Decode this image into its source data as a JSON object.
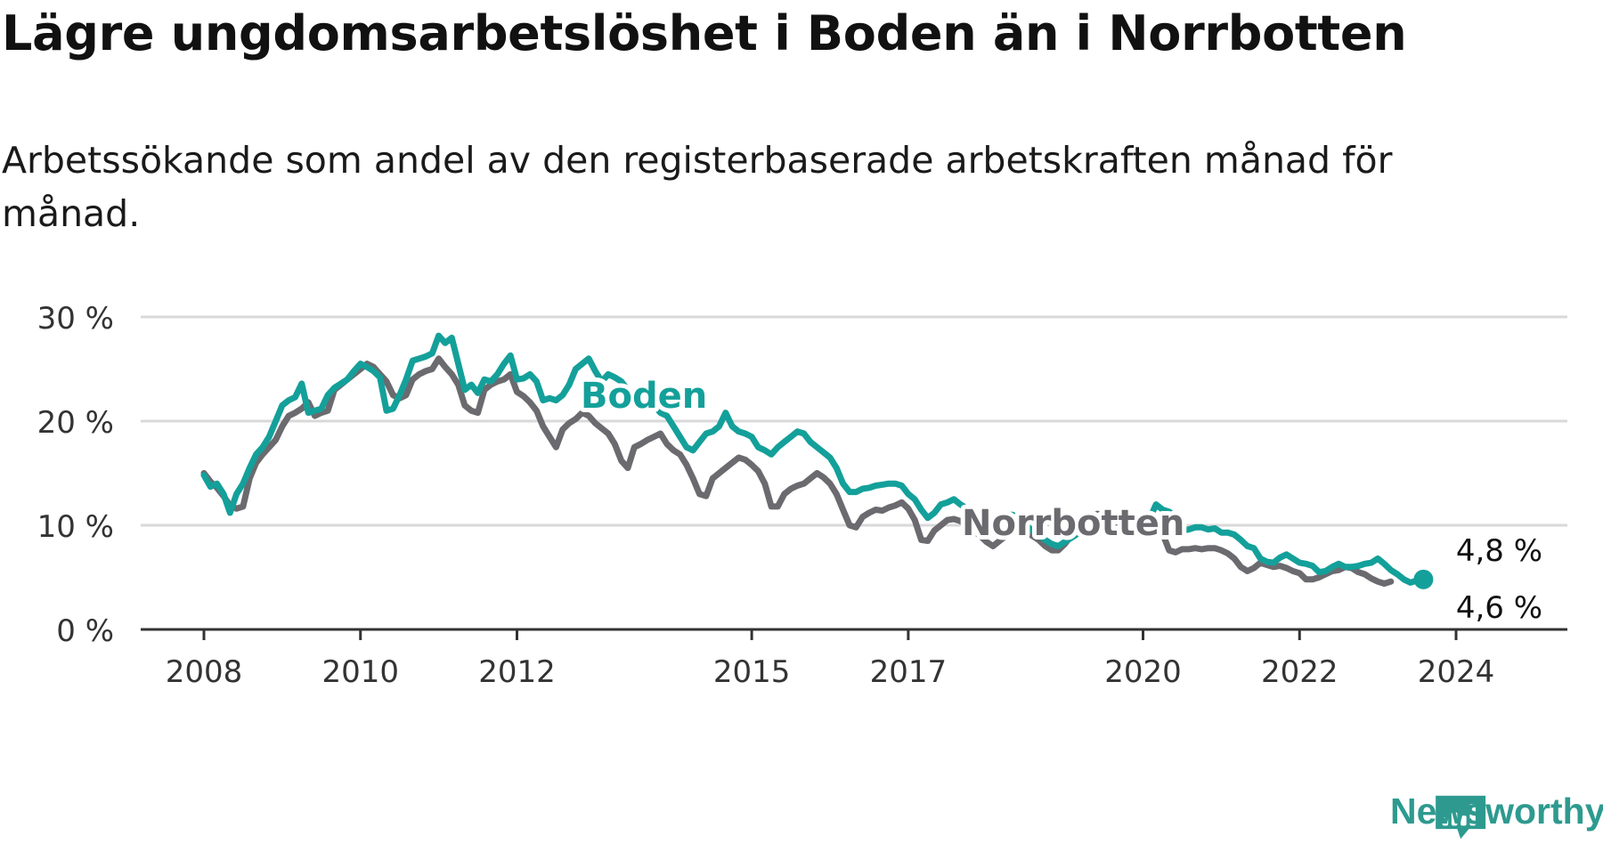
{
  "title": "Lägre ungdomsarbetslöshet i Boden än i Norrbotten",
  "subtitle": "Arbetssökande som andel av den registerbaserade arbetskraften månad för månad.",
  "brand": {
    "name": "Newsworthy",
    "color": "#2e9a8f",
    "icon": "bar-chart-speech-icon"
  },
  "colors": {
    "boden": "#14a09a",
    "norrbotten": "#6b6a6f",
    "grid": "#d9d9d9",
    "axis": "#333333"
  },
  "chart_data": {
    "type": "line",
    "title": "Lägre ungdomsarbetslöshet i Boden än i Norrbotten",
    "subtitle": "Arbetssökande som andel av den registerbaserade arbetskraften månad för månad.",
    "xlabel": "",
    "ylabel": "",
    "x_start": "2008-01",
    "frequency": "monthly",
    "xlim": [
      "2008-01",
      "2025-12"
    ],
    "ylim": [
      0,
      30
    ],
    "y_ticks": [
      {
        "value": 0,
        "label": "0 %"
      },
      {
        "value": 10,
        "label": "10 %"
      },
      {
        "value": 20,
        "label": "20 %"
      },
      {
        "value": 30,
        "label": "30 %"
      }
    ],
    "x_ticks": [
      {
        "value": "2008-01",
        "label": "2008"
      },
      {
        "value": "2010-01",
        "label": "2010"
      },
      {
        "value": "2012-01",
        "label": "2012"
      },
      {
        "value": "2015-01",
        "label": "2015"
      },
      {
        "value": "2017-01",
        "label": "2017"
      },
      {
        "value": "2020-01",
        "label": "2020"
      },
      {
        "value": "2022-01",
        "label": "2022"
      },
      {
        "value": "2024-01",
        "label": "2024"
      }
    ],
    "grid": true,
    "series": [
      {
        "name": "Norrbotten",
        "color": "#6b6a6f",
        "values": [
          15.0,
          14.2,
          13.6,
          12.8,
          11.9,
          11.6,
          11.8,
          14.5,
          16.0,
          16.8,
          17.5,
          18.2,
          19.5,
          20.5,
          20.8,
          21.2,
          21.8,
          20.5,
          20.8,
          21.0,
          23.0,
          23.5,
          24.0,
          24.5,
          25.0,
          25.5,
          25.2,
          24.5,
          23.8,
          22.5,
          22.2,
          22.5,
          24.0,
          24.5,
          24.8,
          25.0,
          26.0,
          25.2,
          24.5,
          23.5,
          21.5,
          21.0,
          20.8,
          23.0,
          23.5,
          23.8,
          24.0,
          24.5,
          22.8,
          22.4,
          21.8,
          21.0,
          19.5,
          18.5,
          17.5,
          19.2,
          19.8,
          20.2,
          20.8,
          20.5,
          19.8,
          19.3,
          18.8,
          17.8,
          16.2,
          15.5,
          17.5,
          17.8,
          18.2,
          18.5,
          18.8,
          17.8,
          17.2,
          16.8,
          15.8,
          14.5,
          13.0,
          12.8,
          14.5,
          15.0,
          15.5,
          16.0,
          16.5,
          16.3,
          15.8,
          15.2,
          14.0,
          11.8,
          11.8,
          13.0,
          13.5,
          13.8,
          14.0,
          14.5,
          15.0,
          14.6,
          14.0,
          13.0,
          11.5,
          10.0,
          9.8,
          10.8,
          11.2,
          11.5,
          11.4,
          11.7,
          11.9,
          12.2,
          11.6,
          10.5,
          8.6,
          8.5,
          9.5,
          10.0,
          10.5,
          10.6,
          10.4,
          10.0,
          9.5,
          9.0,
          8.4,
          8.0,
          8.5,
          9.0,
          9.5,
          9.2,
          9.4,
          9.0,
          8.6,
          8.0,
          7.6,
          7.6,
          8.2,
          9.0,
          9.6,
          10.4,
          10.8,
          11.1,
          10.8,
          10.5,
          10.3,
          10.2,
          10.2,
          10.3,
          11.0,
          10.6,
          10.1,
          9.2,
          7.6,
          7.4,
          7.7,
          7.7,
          7.8,
          7.7,
          7.8,
          7.8,
          7.6,
          7.3,
          6.8,
          6.0,
          5.6,
          5.9,
          6.4,
          6.2,
          6.0,
          6.1,
          5.9,
          5.6,
          5.4,
          4.8,
          4.8,
          5.0,
          5.3,
          5.6,
          5.7,
          6.0,
          5.9,
          5.5,
          5.3,
          4.9,
          4.6,
          4.4,
          4.6
        ]
      },
      {
        "name": "Boden",
        "color": "#14a09a",
        "values": [
          14.8,
          13.7,
          14.0,
          13.0,
          11.2,
          13.0,
          14.0,
          15.5,
          16.8,
          17.5,
          18.5,
          20.0,
          21.5,
          22.0,
          22.3,
          23.6,
          20.8,
          21.0,
          21.2,
          22.5,
          23.2,
          23.6,
          24.0,
          24.8,
          25.5,
          25.2,
          24.8,
          24.2,
          21.0,
          21.2,
          22.5,
          24.0,
          25.8,
          26.0,
          26.2,
          26.5,
          28.2,
          27.5,
          28.0,
          25.5,
          23.0,
          23.5,
          22.7,
          24.0,
          23.8,
          24.5,
          25.5,
          26.3,
          24.0,
          24.1,
          24.5,
          23.8,
          22.0,
          22.2,
          22.0,
          22.5,
          23.5,
          25.0,
          25.5,
          26.0,
          24.8,
          23.8,
          24.5,
          24.2,
          23.8,
          23.0,
          22.5,
          22.5,
          22.8,
          21.5,
          20.8,
          20.5,
          19.5,
          18.5,
          17.5,
          17.2,
          18.0,
          18.8,
          19.0,
          19.5,
          20.8,
          19.5,
          19.0,
          18.8,
          18.5,
          17.5,
          17.2,
          16.8,
          17.5,
          18.0,
          18.5,
          19.0,
          18.8,
          18.0,
          17.5,
          17.0,
          16.5,
          15.5,
          14.0,
          13.2,
          13.2,
          13.5,
          13.6,
          13.8,
          13.9,
          14.0,
          14.0,
          13.8,
          13.0,
          12.5,
          11.5,
          10.7,
          11.2,
          12.0,
          12.2,
          12.5,
          12.0,
          11.6,
          11.5,
          10.8,
          10.5,
          10.5,
          10.7,
          11.0,
          11.0,
          10.5,
          10.0,
          9.5,
          9.0,
          8.6,
          8.2,
          8.0,
          8.4,
          8.8,
          9.2,
          9.8,
          10.3,
          10.6,
          10.8,
          11.2,
          11.0,
          10.9,
          10.5,
          10.3,
          10.3,
          10.6,
          12.0,
          11.5,
          11.3,
          10.8,
          9.5,
          9.6,
          9.8,
          9.8,
          9.6,
          9.7,
          9.3,
          9.3,
          9.1,
          8.6,
          8.0,
          7.8,
          6.8,
          6.5,
          6.4,
          6.9,
          7.2,
          6.8,
          6.4,
          6.3,
          6.1,
          5.5,
          5.6,
          6.0,
          6.3,
          6.0,
          6.0,
          6.1,
          6.3,
          6.4,
          6.8,
          6.3,
          5.7,
          5.3,
          4.8,
          4.5,
          4.7,
          4.8
        ]
      }
    ],
    "series_labels": [
      {
        "series": "Boden",
        "text": "Boden"
      },
      {
        "series": "Norrbotten",
        "text": "Norrbotten"
      }
    ],
    "end_labels": [
      {
        "series": "Boden",
        "text": "4,8 %",
        "value": 4.8
      },
      {
        "series": "Norrbotten",
        "text": "4,6 %",
        "value": 4.6
      }
    ]
  }
}
